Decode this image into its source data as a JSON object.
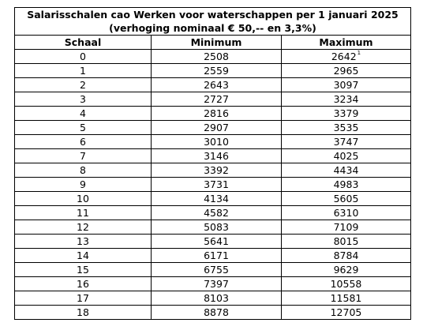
{
  "table": {
    "title": "Salarisschalen cao Werken voor waterschappen per 1 januari 2025 (verhoging nominaal € 50,-- en 3,3%)",
    "headers": [
      "Schaal",
      "Minimum",
      "Maximum"
    ],
    "rows": [
      {
        "schaal": "0",
        "minimum": "2508",
        "maximum": "2642",
        "footnote": "1"
      },
      {
        "schaal": "1",
        "minimum": "2559",
        "maximum": "2965"
      },
      {
        "schaal": "2",
        "minimum": "2643",
        "maximum": "3097"
      },
      {
        "schaal": "3",
        "minimum": "2727",
        "maximum": "3234"
      },
      {
        "schaal": "4",
        "minimum": "2816",
        "maximum": "3379"
      },
      {
        "schaal": "5",
        "minimum": "2907",
        "maximum": "3535"
      },
      {
        "schaal": "6",
        "minimum": "3010",
        "maximum": "3747"
      },
      {
        "schaal": "7",
        "minimum": "3146",
        "maximum": "4025"
      },
      {
        "schaal": "8",
        "minimum": "3392",
        "maximum": "4434"
      },
      {
        "schaal": "9",
        "minimum": "3731",
        "maximum": "4983"
      },
      {
        "schaal": "10",
        "minimum": "4134",
        "maximum": "5605"
      },
      {
        "schaal": "11",
        "minimum": "4582",
        "maximum": "6310"
      },
      {
        "schaal": "12",
        "minimum": "5083",
        "maximum": "7109"
      },
      {
        "schaal": "13",
        "minimum": "5641",
        "maximum": "8015"
      },
      {
        "schaal": "14",
        "minimum": "6171",
        "maximum": "8784"
      },
      {
        "schaal": "15",
        "minimum": "6755",
        "maximum": "9629"
      },
      {
        "schaal": "16",
        "minimum": "7397",
        "maximum": "10558"
      },
      {
        "schaal": "17",
        "minimum": "8103",
        "maximum": "11581"
      },
      {
        "schaal": "18",
        "minimum": "8878",
        "maximum": "12705"
      }
    ]
  }
}
